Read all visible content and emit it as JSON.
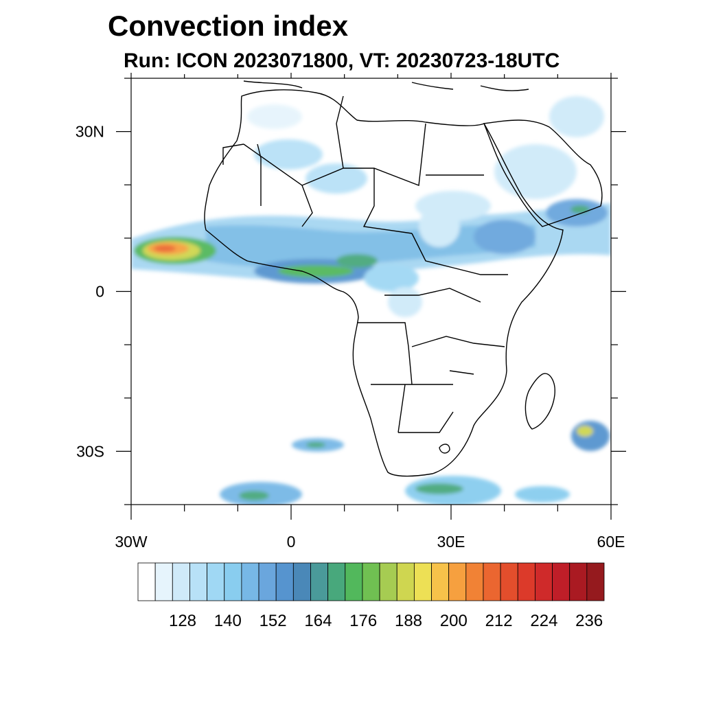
{
  "title": "Convection index",
  "subtitle": "Run: ICON 2023071800,  VT: 20230723-18UTC",
  "map": {
    "lon_range": [
      -30,
      60
    ],
    "lat_range": [
      -40,
      40
    ],
    "lon_ticks": [
      {
        "value": -30,
        "label": "30W"
      },
      {
        "value": 0,
        "label": "0"
      },
      {
        "value": 30,
        "label": "30E"
      },
      {
        "value": 60,
        "label": "60E"
      }
    ],
    "lat_ticks": [
      {
        "value": 30,
        "label": "30N"
      },
      {
        "value": 0,
        "label": "0"
      },
      {
        "value": -30,
        "label": "30S"
      }
    ]
  },
  "colorbar": {
    "colors": [
      "#ffffff",
      "#e6f4fc",
      "#cfeaf9",
      "#b8e1f7",
      "#a0d8f4",
      "#89cdef",
      "#77b8e6",
      "#6aa6dd",
      "#5694cf",
      "#4a88b8",
      "#4a9a9a",
      "#48a87c",
      "#52b85c",
      "#70c052",
      "#a6cc52",
      "#cfd650",
      "#ede055",
      "#f7c24a",
      "#f6a03f",
      "#f18235",
      "#eb6630",
      "#e34e2c",
      "#dc3a2a",
      "#cf2a2a",
      "#bf1e28",
      "#aa1a22",
      "#951a1e"
    ],
    "labels": [
      "128",
      "140",
      "152",
      "164",
      "176",
      "188",
      "200",
      "212",
      "224",
      "236"
    ]
  }
}
